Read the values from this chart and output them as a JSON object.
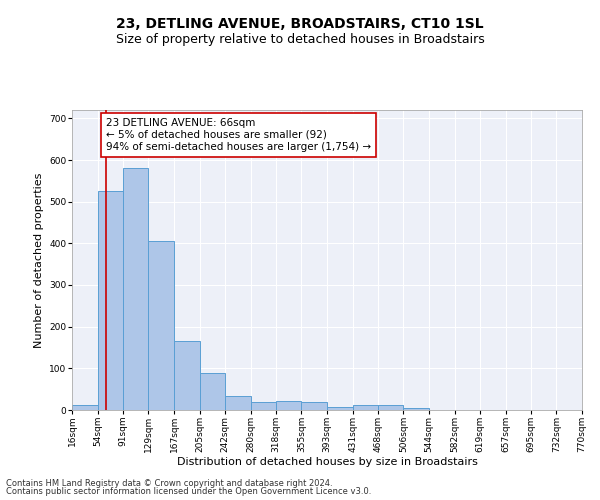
{
  "title": "23, DETLING AVENUE, BROADSTAIRS, CT10 1SL",
  "subtitle": "Size of property relative to detached houses in Broadstairs",
  "xlabel": "Distribution of detached houses by size in Broadstairs",
  "ylabel": "Number of detached properties",
  "bar_edges": [
    16,
    54,
    91,
    129,
    167,
    205,
    242,
    280,
    318,
    355,
    393,
    431,
    468,
    506,
    544,
    582,
    619,
    657,
    695,
    732,
    770
  ],
  "bar_heights": [
    13,
    525,
    580,
    405,
    165,
    88,
    33,
    20,
    22,
    20,
    8,
    12,
    12,
    5,
    0,
    0,
    0,
    0,
    0,
    0
  ],
  "bar_color": "#aec6e8",
  "bar_edge_color": "#5a9fd4",
  "vline_x": 66,
  "vline_color": "#cc0000",
  "annotation_text_line1": "23 DETLING AVENUE: 66sqm",
  "annotation_text_line2": "← 5% of detached houses are smaller (92)",
  "annotation_text_line3": "94% of semi-detached houses are larger (1,754) →",
  "box_edge_color": "#cc0000",
  "ylim": [
    0,
    720
  ],
  "yticks": [
    0,
    100,
    200,
    300,
    400,
    500,
    600,
    700
  ],
  "tick_labels": [
    "16sqm",
    "54sqm",
    "91sqm",
    "129sqm",
    "167sqm",
    "205sqm",
    "242sqm",
    "280sqm",
    "318sqm",
    "355sqm",
    "393sqm",
    "431sqm",
    "468sqm",
    "506sqm",
    "544sqm",
    "582sqm",
    "619sqm",
    "657sqm",
    "695sqm",
    "732sqm",
    "770sqm"
  ],
  "footer_line1": "Contains HM Land Registry data © Crown copyright and database right 2024.",
  "footer_line2": "Contains public sector information licensed under the Open Government Licence v3.0.",
  "bg_color": "#edf0f8",
  "grid_color": "#ffffff",
  "title_fontsize": 10,
  "subtitle_fontsize": 9,
  "axis_label_fontsize": 8,
  "tick_fontsize": 6.5,
  "annotation_fontsize": 7.5,
  "footer_fontsize": 6
}
